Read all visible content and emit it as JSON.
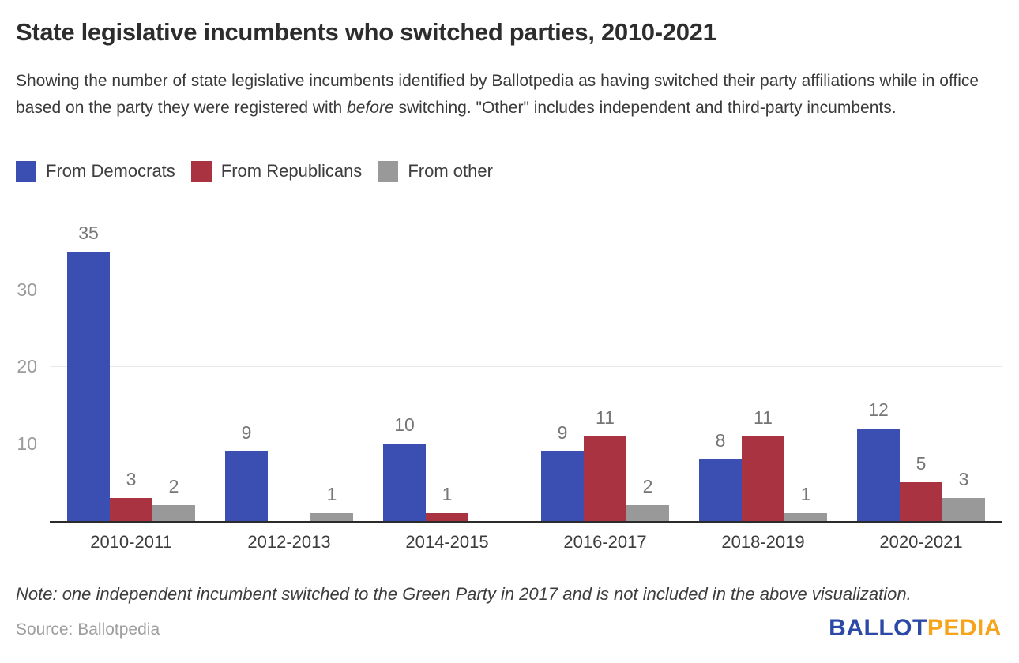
{
  "header": {
    "title": "State legislative incumbents who switched parties, 2010-2021",
    "subtitle_prefix": "Showing the number of state legislative incumbents identified by Ballotpedia as having switched their party affiliations while in office based on the party they were registered with ",
    "subtitle_italic": "before",
    "subtitle_suffix": " switching. \"Other\" includes independent and third-party incumbents."
  },
  "legend": [
    {
      "label": "From Democrats",
      "color": "#3b4fb2"
    },
    {
      "label": "From Republicans",
      "color": "#a93340"
    },
    {
      "label": "From other",
      "color": "#999999"
    }
  ],
  "chart_data": {
    "type": "bar",
    "title": "State legislative incumbents who switched parties, 2010-2021",
    "categories": [
      "2010-2011",
      "2012-2013",
      "2014-2015",
      "2016-2017",
      "2018-2019",
      "2020-2021"
    ],
    "series": [
      {
        "name": "From Democrats",
        "color": "#3b4fb2",
        "values": [
          35,
          9,
          10,
          9,
          8,
          12
        ]
      },
      {
        "name": "From Republicans",
        "color": "#a93340",
        "values": [
          3,
          0,
          1,
          11,
          11,
          5
        ]
      },
      {
        "name": "From other",
        "color": "#999999",
        "values": [
          2,
          1,
          0,
          2,
          1,
          3
        ]
      }
    ],
    "xlabel": "",
    "ylabel": "",
    "y_ticks": [
      10,
      20,
      30
    ],
    "ylim": [
      0,
      40
    ],
    "grid": true,
    "legend_position": "top",
    "value_labels_shown": true,
    "zero_value_bars_hidden": true,
    "colors": {
      "gridline": "#e8e8e8",
      "axis_line": "#2b2b2b",
      "tick_label": "#9b9b9b",
      "value_label": "#767676",
      "category_label": "#3c3c3c"
    }
  },
  "footer": {
    "note": "Note: one independent incumbent switched to the Green Party in 2017 and is not included in the above visualization.",
    "source": "Source: Ballotpedia",
    "logo": {
      "part1": "BALLOT",
      "part2": "PEDIA",
      "color1": "#2c49a8",
      "color2": "#f5a41c"
    }
  }
}
